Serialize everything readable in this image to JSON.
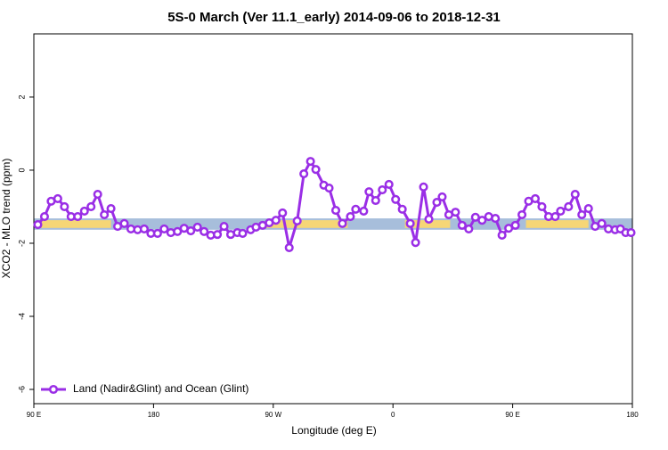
{
  "chart_data": {
    "type": "line",
    "title": "5S-0 March (Ver 11.1_early)   2014-09-06 to 2018-12-31",
    "xlabel": "Longitude (deg E)",
    "ylabel": "XCO2 - MLO trend (ppm)",
    "x": [
      93,
      98,
      103,
      108,
      113,
      118,
      123,
      128,
      133,
      138,
      143,
      148,
      153,
      158,
      163,
      168,
      173,
      178,
      183,
      188,
      193,
      198,
      203,
      208,
      213,
      218,
      223,
      228,
      233,
      238,
      243,
      247,
      253,
      257,
      262,
      267,
      272,
      277,
      282,
      288,
      293,
      298,
      302,
      308,
      312,
      317,
      322,
      328,
      332,
      338,
      342,
      347,
      352,
      357,
      362,
      367,
      373,
      377,
      383,
      387,
      393,
      397,
      402,
      407,
      412,
      417,
      422,
      427,
      432,
      437,
      442,
      447,
      452,
      457,
      462,
      467,
      472,
      477,
      482,
      486,
      492,
      497,
      502,
      507,
      512,
      517,
      522,
      527,
      531,
      535,
      539
    ],
    "series": [
      {
        "name": "Land (Nadir&Glint) and Ocean (Glint)",
        "color": "#9a2ee6",
        "values": [
          -1.49,
          -1.27,
          -0.85,
          -0.78,
          -1.0,
          -1.27,
          -1.27,
          -1.12,
          -1.0,
          -0.66,
          -1.22,
          -1.05,
          -1.54,
          -1.46,
          -1.61,
          -1.63,
          -1.61,
          -1.73,
          -1.73,
          -1.61,
          -1.71,
          -1.68,
          -1.59,
          -1.66,
          -1.56,
          -1.68,
          -1.78,
          -1.76,
          -1.54,
          -1.76,
          -1.71,
          -1.73,
          -1.63,
          -1.56,
          -1.51,
          -1.44,
          -1.37,
          -1.17,
          -2.12,
          -1.39,
          -0.1,
          0.24,
          0.02,
          -0.41,
          -0.49,
          -1.1,
          -1.46,
          -1.27,
          -1.07,
          -1.12,
          -0.59,
          -0.83,
          -0.54,
          -0.39,
          -0.8,
          -1.07,
          -1.46,
          -1.98,
          -0.46,
          -1.34,
          -0.88,
          -0.73,
          -1.22,
          -1.15,
          -1.51,
          -1.61,
          -1.29,
          -1.37,
          -1.27,
          -1.32,
          -1.78,
          -1.59,
          -1.51,
          -1.22,
          -0.85,
          -0.78,
          -1.0,
          -1.27,
          -1.27,
          -1.12,
          -1.0,
          -0.66,
          -1.22,
          -1.05,
          -1.54,
          -1.46,
          -1.61,
          -1.63,
          -1.61,
          -1.71,
          -1.71
        ]
      }
    ],
    "xlim": [
      90,
      540
    ],
    "xticks": [
      {
        "value": 90,
        "label": "90 E"
      },
      {
        "value": 180,
        "label": "180"
      },
      {
        "value": 270,
        "label": "90 W"
      },
      {
        "value": 360,
        "label": "0"
      },
      {
        "value": 450,
        "label": "90 E"
      },
      {
        "value": 540,
        "label": "180"
      }
    ],
    "ylim": [
      -6.39,
      3.73
    ],
    "yticks": [
      -6,
      -4,
      -2,
      0,
      2
    ],
    "band": {
      "ylim": [
        -1.63,
        -1.32
      ],
      "color": "#a7bedb",
      "land": [
        [
          95,
          148
        ],
        [
          265,
          326
        ],
        [
          369,
          403
        ],
        [
          460,
          507
        ]
      ],
      "land_color": "#f6d676"
    },
    "legend": "bottom-left"
  }
}
